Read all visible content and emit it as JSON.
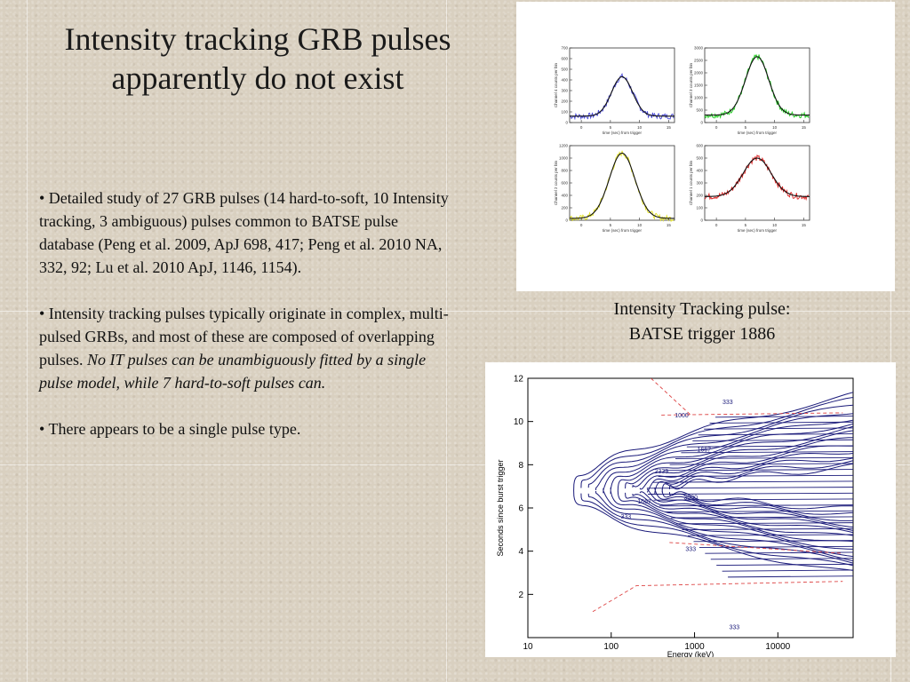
{
  "slide": {
    "title_line1": "Intensity tracking GRB pulses",
    "title_line2": "apparently do not exist",
    "bullets": [
      {
        "text": "•  Detailed study of 27 GRB pulses (14 hard-to-soft, 10 Intensity tracking, 3 ambiguous) pulses common to BATSE pulse database (Peng et al. 2009, ApJ 698, 417; Peng et al. 2010 NA, 332, 92; Lu et al. 2010 ApJ, 1146, 1154)."
      },
      {
        "text": "•  Intensity tracking pulses typically originate in complex, multi-pulsed GRBs, and most of these are composed of overlapping pulses. ",
        "italic": "No IT pulses can be unambiguously fitted by a single pulse model, while 7 hard-to-soft pulses can."
      },
      {
        "text": "• There appears to be a single pulse type."
      }
    ],
    "caption_line1": "Intensity Tracking pulse:",
    "caption_line2": "BATSE trigger 1886"
  },
  "chart_data": [
    {
      "type": "line",
      "panel": "top-left",
      "color": "#4a4ad8",
      "xlabel": "time (sec) from trigger",
      "ylabel": "Channel 4 counts per bin",
      "x_ticks": [
        "0",
        "5",
        "10",
        "15"
      ],
      "y_ticks": [
        "0",
        "100",
        "200",
        "300",
        "400",
        "500",
        "600",
        "700"
      ],
      "xlim": [
        -2,
        16
      ],
      "ylim": [
        0,
        700
      ],
      "pulse_peak_time": 7,
      "pulse_width": 1.8,
      "baseline": 60,
      "peak_value": 430
    },
    {
      "type": "line",
      "panel": "top-right",
      "color": "#22cc22",
      "xlabel": "time (sec) from trigger",
      "ylabel": "Channel 3 counts per bin",
      "x_ticks": [
        "0",
        "5",
        "10",
        "15"
      ],
      "y_ticks": [
        "0",
        "500",
        "1000",
        "1500",
        "2000",
        "2500",
        "3000"
      ],
      "xlim": [
        -2,
        16
      ],
      "ylim": [
        0,
        3000
      ],
      "pulse_peak_time": 7,
      "pulse_width": 2.0,
      "baseline": 300,
      "peak_value": 2650
    },
    {
      "type": "line",
      "panel": "bottom-left",
      "color": "#e2e22a",
      "xlabel": "time (sec) from trigger",
      "ylabel": "Channel 2 counts per bin",
      "x_ticks": [
        "0",
        "5",
        "10",
        "15"
      ],
      "y_ticks": [
        "0",
        "200",
        "400",
        "600",
        "800",
        "1000",
        "1200"
      ],
      "xlim": [
        -2,
        16
      ],
      "ylim": [
        0,
        1200
      ],
      "pulse_peak_time": 7,
      "pulse_width": 2.2,
      "baseline": 30,
      "peak_value": 1080
    },
    {
      "type": "line",
      "panel": "bottom-right",
      "color": "#dd2222",
      "xlabel": "time (sec) from trigger",
      "ylabel": "Channel 1 counts per bin",
      "x_ticks": [
        "0",
        "5",
        "10",
        "15"
      ],
      "y_ticks": [
        "0",
        "100",
        "200",
        "300",
        "400",
        "500",
        "600"
      ],
      "xlim": [
        -2,
        16
      ],
      "ylim": [
        0,
        600
      ],
      "pulse_peak_time": 7,
      "pulse_width": 2.4,
      "baseline": 190,
      "peak_value": 500
    },
    {
      "type": "contour",
      "xlabel": "Energy (keV)",
      "ylabel": "Seconds since burst trigger",
      "x_scale": "log",
      "xlim": [
        10,
        80000
      ],
      "ylim": [
        0,
        12
      ],
      "x_ticks": [
        "10",
        "100",
        "1000",
        "10000"
      ],
      "y_ticks": [
        "2",
        "4",
        "6",
        "8",
        "10",
        "12"
      ],
      "contour_levels": [
        "333",
        "1000",
        "1667",
        "2333",
        "3000"
      ],
      "peak_time": 6.8
    }
  ]
}
